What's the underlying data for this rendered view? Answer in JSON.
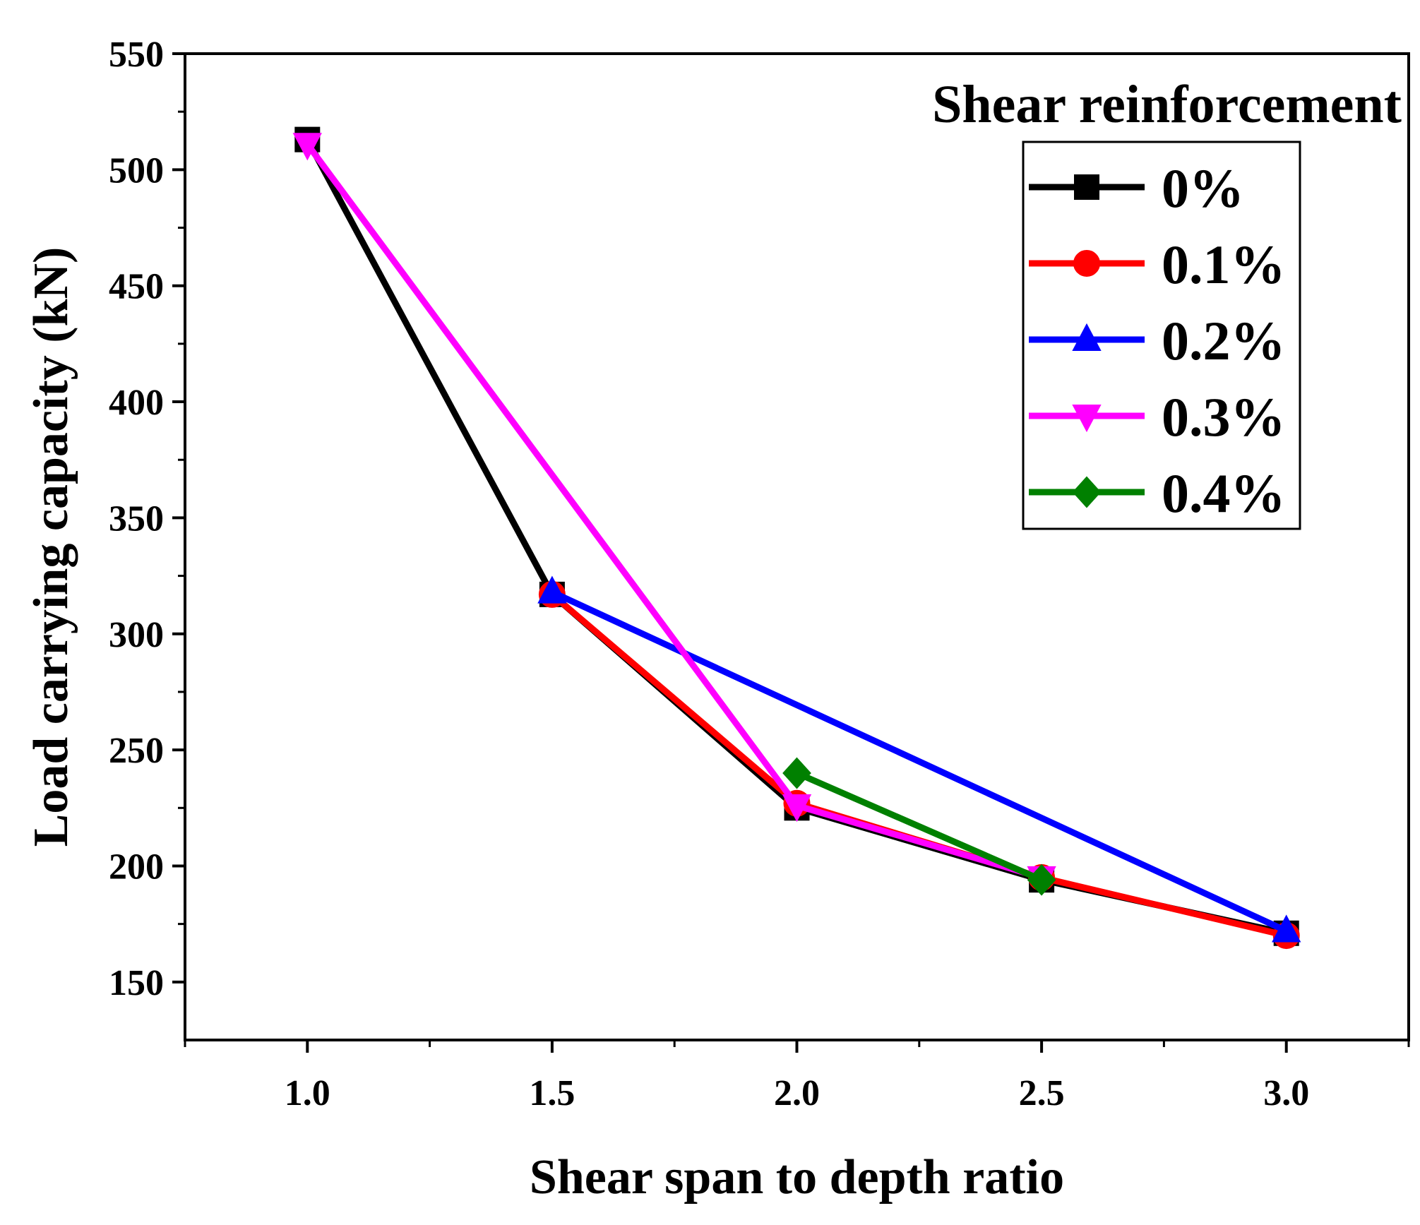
{
  "chart_data": {
    "type": "line",
    "xlabel": "Shear span to depth ratio",
    "ylabel": "Load carrying capacity (kN)",
    "xlim": [
      0.75,
      3.25
    ],
    "ylim": [
      125,
      550
    ],
    "x_ticks": [
      1.0,
      1.5,
      2.0,
      2.5,
      3.0
    ],
    "x_tick_labels": [
      "1.0",
      "1.5",
      "2.0",
      "2.5",
      "3.0"
    ],
    "y_ticks": [
      150,
      200,
      250,
      300,
      350,
      400,
      450,
      500,
      550
    ],
    "y_tick_labels": [
      "150",
      "200",
      "250",
      "300",
      "350",
      "400",
      "450",
      "500",
      "550"
    ],
    "grid": false,
    "legend": {
      "title": "Shear reinforcement",
      "placement": "top-right"
    },
    "series": [
      {
        "name": "0%",
        "color": "#000000",
        "marker": "square",
        "points": [
          [
            1.0,
            513
          ],
          [
            1.5,
            317
          ],
          [
            2.0,
            225
          ],
          [
            2.5,
            194
          ],
          [
            3.0,
            171
          ]
        ]
      },
      {
        "name": "0.1%",
        "color": "#ff0000",
        "marker": "circle",
        "points": [
          [
            1.5,
            317
          ],
          [
            2.0,
            227
          ],
          [
            2.5,
            195
          ],
          [
            3.0,
            170
          ]
        ]
      },
      {
        "name": "0.2%",
        "color": "#0000ff",
        "marker": "triangle-up",
        "points": [
          [
            1.5,
            318
          ],
          [
            3.0,
            172
          ]
        ]
      },
      {
        "name": "0.3%",
        "color": "#ff00ff",
        "marker": "triangle-down",
        "points": [
          [
            1.0,
            511
          ],
          [
            2.0,
            226
          ],
          [
            2.5,
            195
          ]
        ]
      },
      {
        "name": "0.4%",
        "color": "#008000",
        "marker": "diamond",
        "points": [
          [
            2.0,
            240
          ],
          [
            2.5,
            194
          ]
        ]
      }
    ]
  }
}
